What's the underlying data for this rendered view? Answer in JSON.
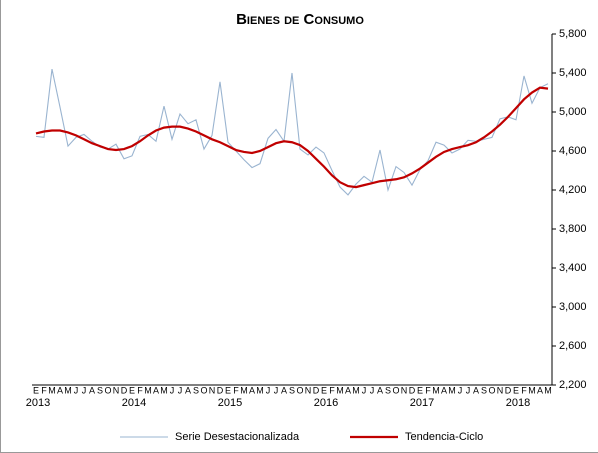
{
  "chart_data": {
    "type": "line",
    "title": "Bienes de Consumo",
    "categories": [
      "E",
      "F",
      "M",
      "A",
      "M",
      "J",
      "J",
      "A",
      "S",
      "O",
      "N",
      "D",
      "E",
      "F",
      "M",
      "A",
      "M",
      "J",
      "J",
      "A",
      "S",
      "O",
      "N",
      "D",
      "E",
      "F",
      "M",
      "A",
      "M",
      "J",
      "J",
      "A",
      "S",
      "O",
      "N",
      "D",
      "E",
      "F",
      "M",
      "A",
      "M",
      "J",
      "J",
      "A",
      "S",
      "O",
      "N",
      "D",
      "E",
      "F",
      "M",
      "A",
      "M",
      "J",
      "J",
      "A",
      "S",
      "O",
      "N",
      "D",
      "E",
      "F",
      "M",
      "A",
      "M"
    ],
    "years": [
      "2013",
      "2014",
      "2015",
      "2016",
      "2017",
      "2018"
    ],
    "series": [
      {
        "name": "Serie Desestacionalizada",
        "color": "#9ab4d0",
        "values": [
          4750,
          4740,
          5440,
          5050,
          4650,
          4740,
          4770,
          4700,
          4640,
          4620,
          4670,
          4520,
          4550,
          4750,
          4770,
          4700,
          5060,
          4720,
          4980,
          4880,
          4920,
          4620,
          4760,
          5310,
          4690,
          4600,
          4510,
          4430,
          4470,
          4730,
          4820,
          4700,
          5400,
          4620,
          4560,
          4640,
          4580,
          4400,
          4230,
          4150,
          4260,
          4340,
          4280,
          4610,
          4200,
          4440,
          4380,
          4250,
          4410,
          4500,
          4690,
          4660,
          4580,
          4620,
          4710,
          4700,
          4720,
          4740,
          4930,
          4950,
          4920,
          5370,
          5090,
          5250,
          5290
        ]
      },
      {
        "name": "Tendencia-Ciclo",
        "color": "#c00000",
        "values": [
          4780,
          4800,
          4810,
          4810,
          4790,
          4760,
          4720,
          4680,
          4650,
          4620,
          4610,
          4620,
          4650,
          4700,
          4760,
          4810,
          4840,
          4850,
          4850,
          4830,
          4800,
          4760,
          4720,
          4690,
          4650,
          4610,
          4590,
          4580,
          4600,
          4640,
          4680,
          4700,
          4690,
          4660,
          4600,
          4520,
          4440,
          4350,
          4280,
          4240,
          4230,
          4250,
          4270,
          4290,
          4300,
          4310,
          4330,
          4370,
          4420,
          4480,
          4540,
          4590,
          4620,
          4640,
          4660,
          4690,
          4740,
          4800,
          4870,
          4950,
          5040,
          5130,
          5200,
          5250,
          5240
        ]
      }
    ],
    "ylim": [
      2200,
      5800
    ],
    "yticks": [
      {
        "value": 2200,
        "label": "2,200"
      },
      {
        "value": 2600,
        "label": "2,600"
      },
      {
        "value": 3000,
        "label": "3,000"
      },
      {
        "value": 3400,
        "label": "3,400"
      },
      {
        "value": 3800,
        "label": "3,800"
      },
      {
        "value": 4200,
        "label": "4,200"
      },
      {
        "value": 4600,
        "label": "4,600"
      },
      {
        "value": 5000,
        "label": "5,000"
      },
      {
        "value": 5400,
        "label": "5,400"
      },
      {
        "value": 5800,
        "label": "5,800"
      }
    ]
  }
}
